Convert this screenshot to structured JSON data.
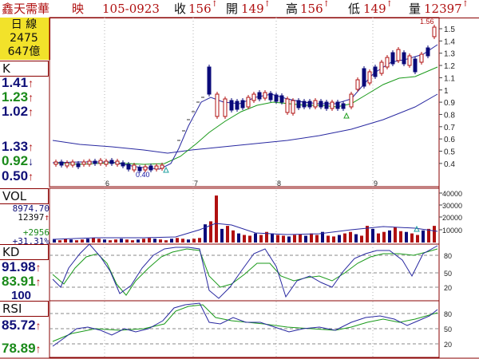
{
  "header": {
    "title": "鑫天需華",
    "mode": "映",
    "date": "105-0923",
    "close_label": "收",
    "close_value": "156",
    "open_label": "開",
    "open_value": "149",
    "high_label": "高",
    "high_value": "156",
    "low_label": "低",
    "low_value": "149",
    "vol_label": "量",
    "vol_value": "12397",
    "tick_mark": "↑"
  },
  "info": {
    "period": "日 線",
    "value1": "2475",
    "value2": "647億"
  },
  "k_panel": {
    "label": "K",
    "ma_values": [
      {
        "text": "1.41",
        "color": "#101078",
        "arrow": "↑"
      },
      {
        "text": "1.23",
        "color": "#1a8a1a",
        "arrow": "↑"
      },
      {
        "text": "1.02",
        "color": "#101078",
        "arrow": "↑"
      }
    ],
    "extra_values": [
      {
        "text": "1.33",
        "color": "#101078",
        "arrow": "↑"
      },
      {
        "text": "0.92",
        "color": "#1a8a1a",
        "arrow": "↓"
      },
      {
        "text": "0.50",
        "color": "#101078",
        "arrow": "↑"
      }
    ],
    "price_max_label": "1.56",
    "price_min_label": "0.40"
  },
  "vol_panel": {
    "label": "VOL",
    "value1": "8974.70",
    "value2": "12397",
    "change": "+2956",
    "change_pct": "+31.31%"
  },
  "kd_panel": {
    "label": "KD",
    "k_value": "91.98",
    "d_value": "83.91",
    "extra": "100"
  },
  "rsi_panel": {
    "label": "RSI",
    "value1": "85.72",
    "value2": "78.89"
  },
  "axes": {
    "price_ticks": [
      "1.5",
      "1.4",
      "1.3",
      "1.2",
      "1.1",
      "1",
      "0.9",
      "0.8",
      "0.7",
      "0.6",
      "0.5",
      "0.4"
    ],
    "vol_ticks": [
      "40000",
      "30000",
      "20000",
      "10000"
    ],
    "kd_ticks": [
      "80",
      "50",
      "20"
    ],
    "rsi_ticks": [
      "80",
      "50",
      "20"
    ],
    "month_labels": [
      "6",
      "7",
      "8",
      "9"
    ]
  },
  "colors": {
    "up": "#b01010",
    "down": "#0a0a7a",
    "frame": "#8a0000",
    "ma_green": "#1a9a1a",
    "ma_blue": "#2828a0",
    "accent_yellow": "#f2e22a"
  }
}
